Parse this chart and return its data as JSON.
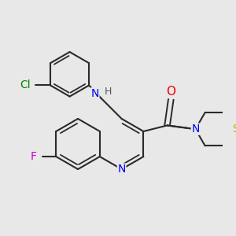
{
  "background_color": "#e8e8e8",
  "bond_color": "#2a2a2a",
  "atom_colors": {
    "N": "#0000ee",
    "O": "#ee0000",
    "F": "#cc00cc",
    "Cl": "#008800",
    "S": "#bbbb00",
    "H": "#555555",
    "C": "#2a2a2a"
  },
  "figsize": [
    3.0,
    3.0
  ],
  "dpi": 100
}
